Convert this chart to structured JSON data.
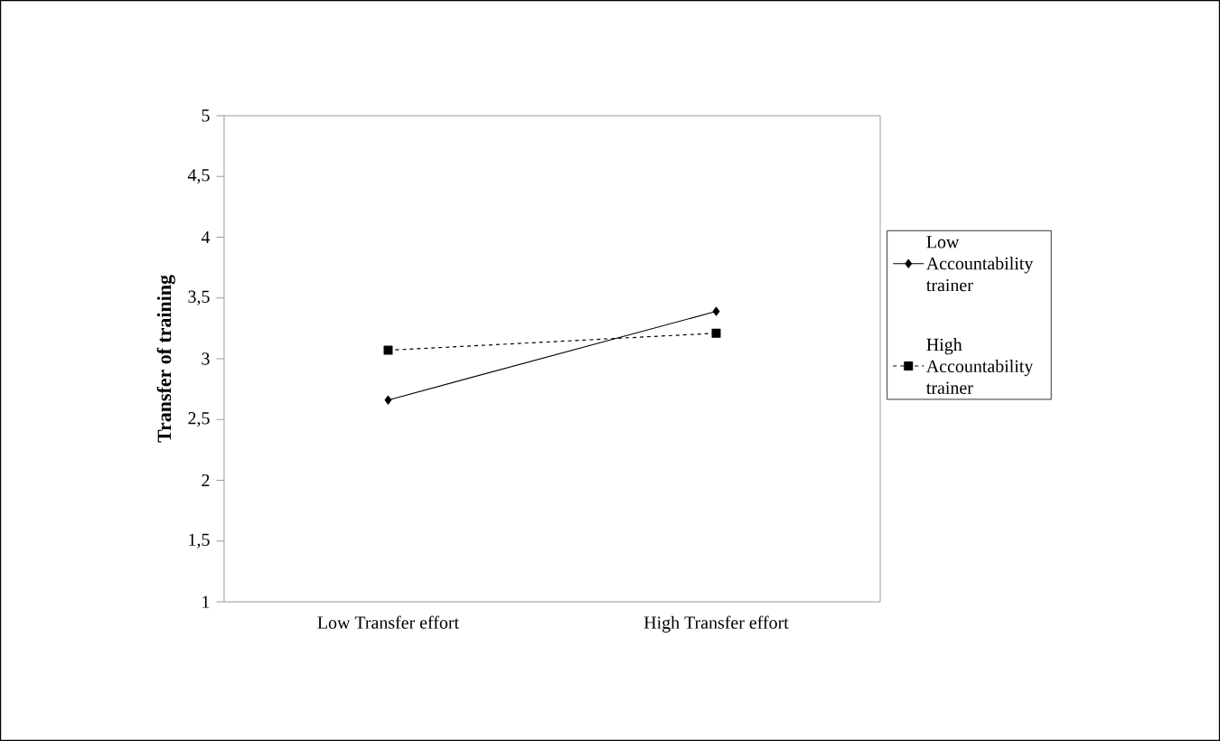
{
  "chart_data": {
    "type": "line",
    "ylabel": "Transfer of training",
    "categories": [
      "Low Transfer effort",
      "High Transfer effort"
    ],
    "series": [
      {
        "name": "Low Accountability trainer",
        "color": "#000000",
        "values": [
          2.66,
          3.39
        ],
        "marker": "diamond",
        "line_style": "solid"
      },
      {
        "name": "High Accountability trainer",
        "color": "#000000",
        "values": [
          3.07,
          3.21
        ],
        "marker": "square",
        "line_style": "dotted"
      }
    ],
    "ylim": [
      1,
      5
    ],
    "yticks": [
      1,
      {
        "value": 1.5,
        "label": "1,5"
      },
      2,
      {
        "value": 2.5,
        "label": "2,5"
      },
      3,
      {
        "value": 3.5,
        "label": "3,5"
      },
      4,
      {
        "value": 4.5,
        "label": "4,5"
      },
      5
    ],
    "grid": false,
    "legend": "right"
  }
}
